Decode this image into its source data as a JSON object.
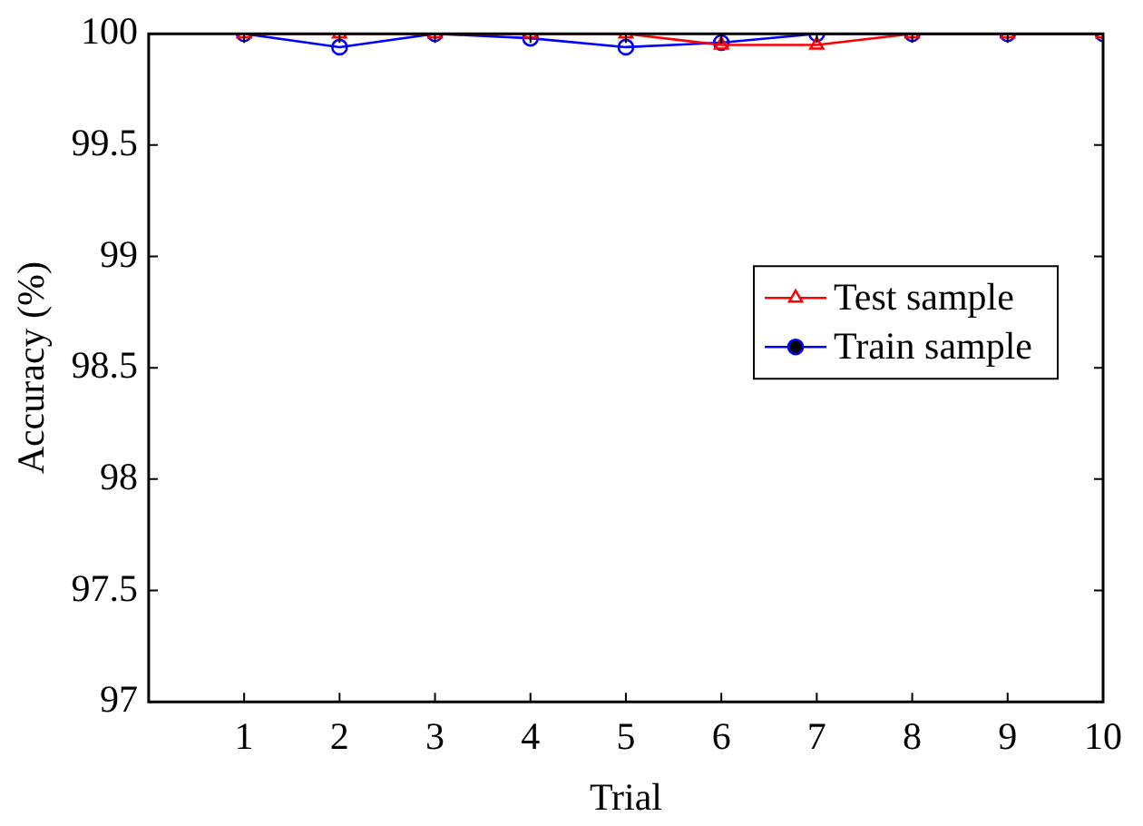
{
  "chart_data": {
    "type": "line",
    "xlabel": "Trial",
    "ylabel": "Accuracy (%)",
    "x": [
      1,
      2,
      3,
      4,
      5,
      6,
      7,
      8,
      9,
      10
    ],
    "series": [
      {
        "name": "Test sample",
        "color": "#ff0000",
        "marker": "triangle",
        "values": [
          100,
          100,
          100,
          100,
          100,
          99.95,
          99.95,
          100,
          100,
          100
        ]
      },
      {
        "name": "Train sample",
        "color": "#0000ff",
        "marker": "circle",
        "values": [
          100,
          99.94,
          100,
          99.98,
          99.94,
          99.96,
          100,
          100,
          100,
          100
        ]
      }
    ],
    "xlim": [
      0,
      10
    ],
    "xticks": [
      1,
      2,
      3,
      4,
      5,
      6,
      7,
      8,
      9,
      10
    ],
    "ylim": [
      97,
      100
    ],
    "yticks": [
      97,
      97.5,
      98,
      98.5,
      99,
      99.5,
      100
    ],
    "grid": false,
    "legend": "right",
    "line_style": "solid"
  }
}
